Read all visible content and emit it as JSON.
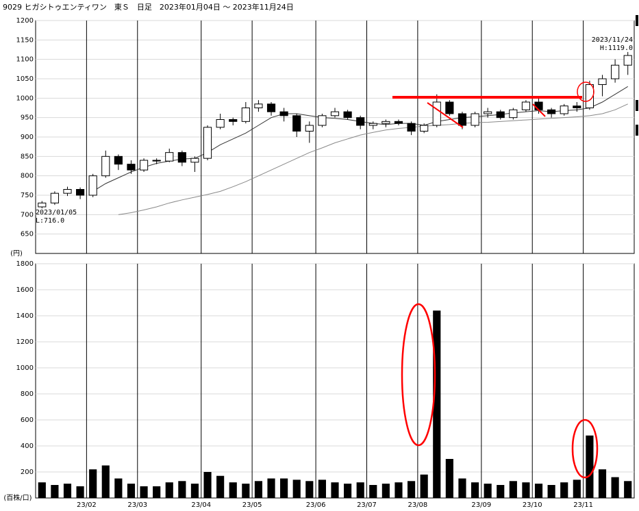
{
  "chart_data": {
    "type": "candlestick",
    "title": "9029 ヒガシトゥエンティワン　東Ｓ　日足　2023年01月04日 ～ 2023年11月24日",
    "price_unit": "(円)",
    "volume_unit": "(百株/口)",
    "annotation_high": "2023/11/24\nH:1119.0",
    "annotation_low": "2023/01/05\nL:716.0",
    "categories": [
      null,
      null,
      null,
      null,
      "23/02",
      null,
      null,
      null,
      "23/03",
      null,
      null,
      null,
      null,
      "23/04",
      null,
      null,
      null,
      "23/05",
      null,
      null,
      null,
      null,
      "23/06",
      null,
      null,
      null,
      "23/07",
      null,
      null,
      null,
      "23/08",
      null,
      null,
      null,
      null,
      "23/09",
      null,
      null,
      null,
      "23/10",
      null,
      null,
      null,
      "23/11",
      null,
      null,
      null
    ],
    "open": [
      720,
      730,
      755,
      765,
      750,
      800,
      850,
      830,
      815,
      840,
      838,
      860,
      835,
      845,
      925,
      945,
      940,
      975,
      985,
      965,
      955,
      915,
      930,
      955,
      965,
      950,
      930,
      935,
      940,
      935,
      915,
      930,
      990,
      960,
      930,
      960,
      965,
      950,
      970,
      990,
      970,
      960,
      980,
      975,
      1035,
      1050,
      1085
    ],
    "high": [
      735,
      760,
      772,
      770,
      805,
      865,
      855,
      840,
      845,
      845,
      870,
      865,
      850,
      930,
      960,
      950,
      990,
      995,
      990,
      975,
      960,
      940,
      960,
      975,
      970,
      955,
      940,
      945,
      945,
      940,
      935,
      1010,
      995,
      965,
      965,
      975,
      970,
      975,
      995,
      1000,
      975,
      985,
      990,
      1045,
      1060,
      1100,
      1119
    ],
    "low": [
      716,
      725,
      748,
      740,
      745,
      795,
      815,
      805,
      810,
      830,
      835,
      825,
      810,
      840,
      920,
      930,
      935,
      965,
      955,
      940,
      900,
      885,
      925,
      950,
      945,
      920,
      920,
      925,
      930,
      905,
      910,
      925,
      955,
      920,
      925,
      950,
      945,
      945,
      965,
      960,
      950,
      955,
      965,
      970,
      1005,
      1040,
      1060
    ],
    "close": [
      730,
      755,
      765,
      750,
      800,
      850,
      830,
      815,
      840,
      838,
      860,
      835,
      845,
      925,
      945,
      940,
      975,
      985,
      965,
      955,
      915,
      930,
      955,
      965,
      950,
      930,
      935,
      940,
      935,
      915,
      930,
      990,
      960,
      930,
      960,
      965,
      950,
      970,
      990,
      970,
      960,
      980,
      975,
      1035,
      1050,
      1085,
      1110
    ],
    "ma": [
      {
        "color": "#333333",
        "values": [
          null,
          null,
          null,
          null,
          760,
          780,
          795,
          810,
          822,
          832,
          838,
          843,
          845,
          860,
          880,
          895,
          910,
          930,
          950,
          960,
          960,
          955,
          950,
          948,
          945,
          940,
          935,
          932,
          935,
          935,
          930,
          940,
          945,
          950,
          952,
          955,
          958,
          962,
          965,
          968,
          965,
          968,
          970,
          975,
          990,
          1010,
          1030
        ]
      },
      {
        "color": "#888888",
        "values": [
          null,
          null,
          null,
          null,
          null,
          null,
          700,
          705,
          712,
          720,
          730,
          738,
          745,
          752,
          760,
          772,
          785,
          800,
          815,
          830,
          845,
          860,
          872,
          885,
          895,
          905,
          912,
          918,
          922,
          925,
          928,
          930,
          932,
          935,
          937,
          938,
          940,
          942,
          944,
          946,
          948,
          950,
          952,
          955,
          960,
          970,
          985
        ]
      }
    ],
    "volume": [
      120,
      100,
      110,
      90,
      220,
      250,
      150,
      110,
      90,
      90,
      120,
      130,
      110,
      200,
      170,
      120,
      110,
      130,
      150,
      150,
      140,
      130,
      140,
      120,
      110,
      120,
      100,
      110,
      120,
      130,
      180,
      1440,
      300,
      150,
      120,
      110,
      100,
      130,
      120,
      110,
      100,
      120,
      140,
      480,
      220,
      160,
      130
    ],
    "volume_color": "#000000",
    "ylim": [
      600,
      1200
    ],
    "yticks": [
      650,
      700,
      750,
      800,
      850,
      900,
      950,
      1000,
      1050,
      1100,
      1150,
      1200
    ],
    "vol_ylim": [
      0,
      1800
    ],
    "vol_yticks": [
      200,
      400,
      600,
      800,
      1000,
      1200,
      1400,
      1600,
      1800
    ],
    "grid": true
  }
}
